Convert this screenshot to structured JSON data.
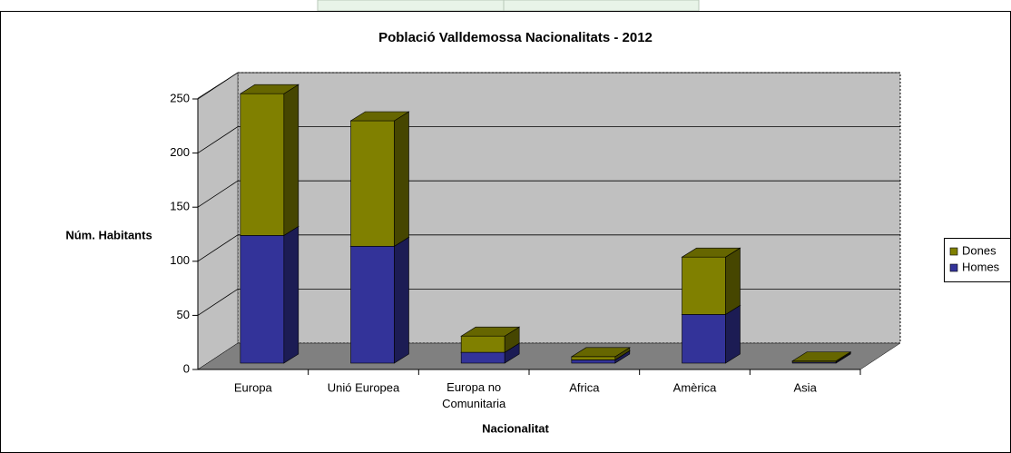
{
  "chart_data": {
    "type": "bar3d_stacked",
    "title": "Població Valldemossa Nacionalitats - 2012",
    "y_label": "Núm. Habitants",
    "x_label": "Nacionalitat",
    "categories": [
      "Europa",
      "Unió Europea",
      "Europa no Comunitaria",
      "Africa",
      "Amèrica",
      "Asia"
    ],
    "series": [
      {
        "name": "Homes",
        "color": "#333399",
        "values": [
          118,
          108,
          10,
          3,
          45,
          1
        ]
      },
      {
        "name": "Dones",
        "color": "#808000",
        "values": [
          131,
          116,
          15,
          3,
          53,
          1
        ]
      }
    ],
    "ylim": [
      0,
      250
    ],
    "yticks": [
      0,
      50,
      100,
      150,
      200,
      250
    ],
    "grid": true,
    "legend": "right"
  }
}
